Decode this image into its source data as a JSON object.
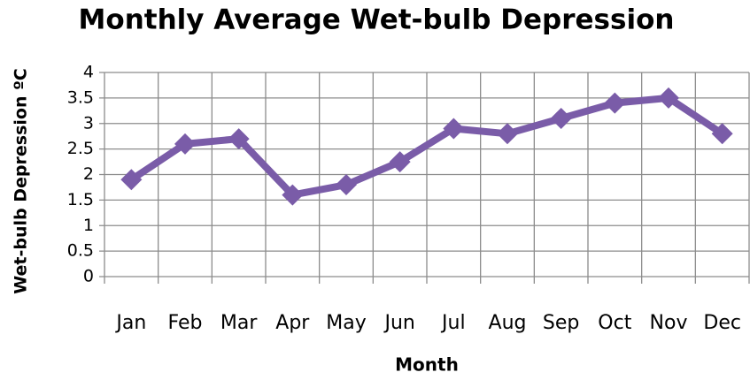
{
  "chart_data": {
    "type": "line",
    "title": "Monthly Average Wet-bulb Depression",
    "x_label": "Month",
    "y_label": "Wet-bulb Depression ºC",
    "categories": [
      "Jan",
      "Feb",
      "Mar",
      "Apr",
      "May",
      "Jun",
      "Jul",
      "Aug",
      "Sep",
      "Oct",
      "Nov",
      "Dec"
    ],
    "series": [
      {
        "name": "Wet-bulb Depression",
        "color": "#7a5ca8",
        "values": [
          1.9,
          2.6,
          2.7,
          1.6,
          1.8,
          2.25,
          2.9,
          2.8,
          3.1,
          3.4,
          3.5,
          2.8
        ]
      }
    ],
    "ylim": [
      0,
      4
    ],
    "yticks": [
      0,
      0.5,
      1,
      1.5,
      2,
      2.5,
      3,
      3.5,
      4
    ],
    "grid": true,
    "legend": false
  }
}
